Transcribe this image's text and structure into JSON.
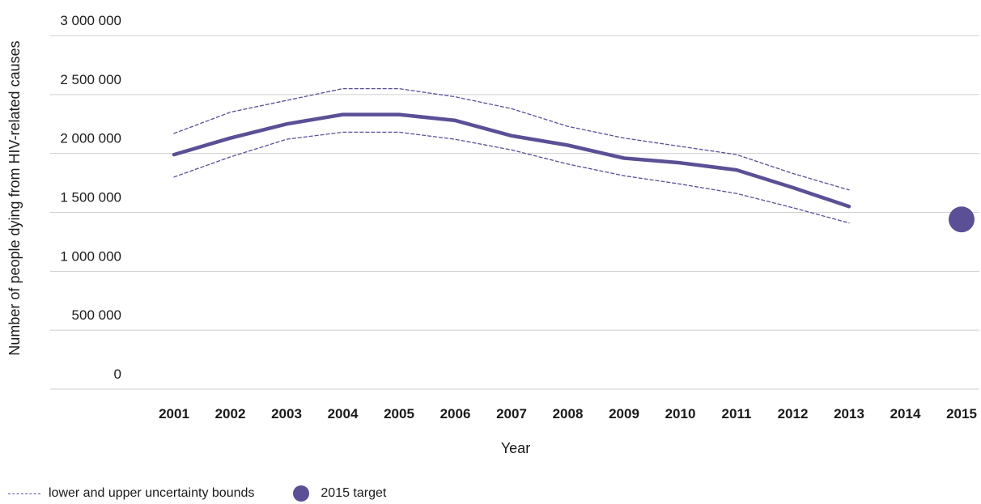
{
  "chart_data": {
    "type": "line",
    "xlabel": "Year",
    "ylabel": "Number of people dying from HIV-related causes",
    "ylim": [
      0,
      3000000
    ],
    "yticks": [
      0,
      500000,
      1000000,
      1500000,
      2000000,
      2500000,
      3000000
    ],
    "ytick_labels": [
      "0",
      "500 000",
      "1 000 000",
      "1 500 000",
      "2 000 000",
      "2 500 000",
      "3 000 000"
    ],
    "x": [
      "2001",
      "2002",
      "2003",
      "2004",
      "2005",
      "2006",
      "2007",
      "2008",
      "2009",
      "2010",
      "2011",
      "2012",
      "2013",
      "2014",
      "2015"
    ],
    "grid": true,
    "series": [
      {
        "values": [
          1990000,
          2130000,
          2250000,
          2330000,
          2330000,
          2280000,
          2150000,
          2070000,
          1960000,
          1920000,
          1860000,
          1710000,
          1550000,
          null,
          null
        ],
        "color": "#5b4f96",
        "style": "solid"
      },
      {
        "values": [
          2170000,
          2350000,
          2450000,
          2550000,
          2550000,
          2480000,
          2380000,
          2230000,
          2130000,
          2060000,
          1990000,
          1830000,
          1690000,
          null,
          null
        ],
        "color": "#5b4f96",
        "style": "dashed"
      },
      {
        "values": [
          1800000,
          1970000,
          2120000,
          2180000,
          2180000,
          2120000,
          2030000,
          1910000,
          1810000,
          1740000,
          1660000,
          1540000,
          1410000,
          null,
          null
        ],
        "color": "#5b4f96",
        "style": "dashed"
      }
    ],
    "target": {
      "year": "2015",
      "value": 1440000,
      "color": "#5b4f96"
    },
    "legend": {
      "position": "bottom-left",
      "items": [
        {
          "label": "lower and upper uncertainty bounds",
          "marker": "dashed-line"
        },
        {
          "label": "2015 target",
          "marker": "circle"
        }
      ]
    }
  }
}
